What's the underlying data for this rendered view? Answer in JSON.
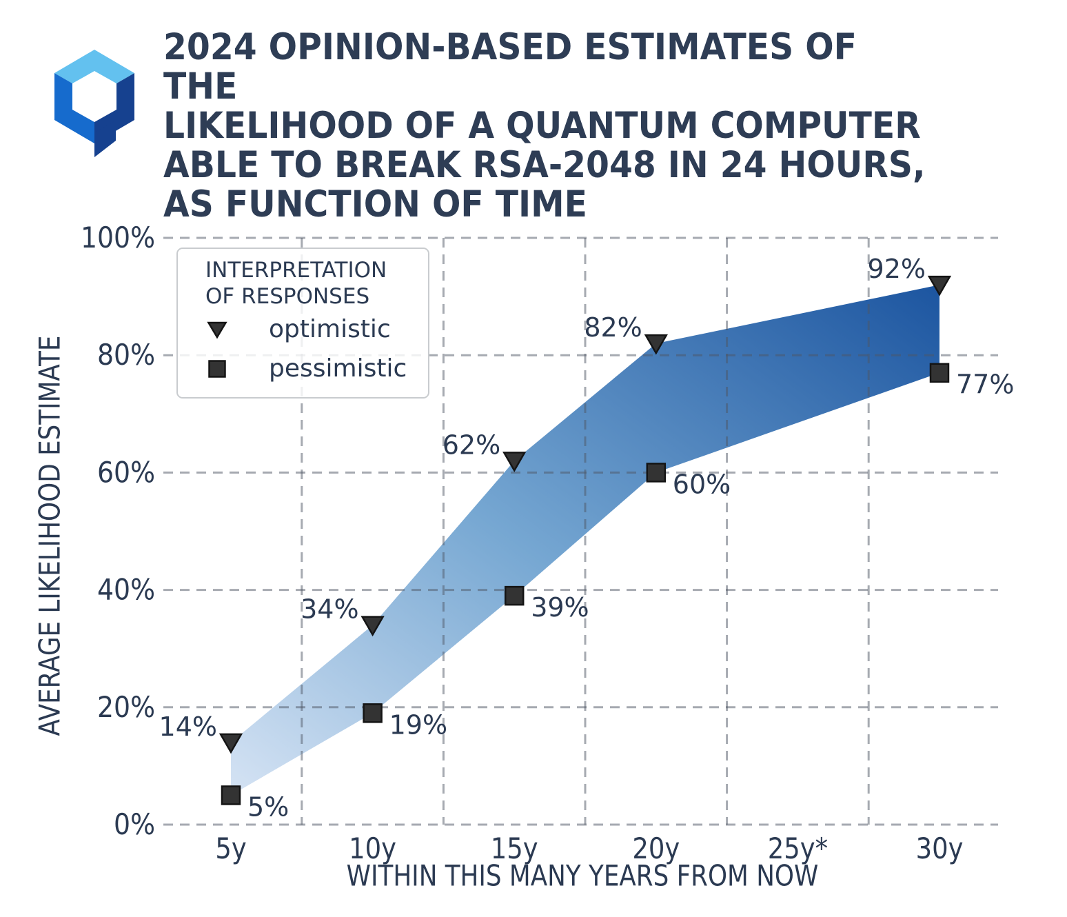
{
  "page": {
    "background": "#ffffff",
    "text_color": "#2B3A52"
  },
  "header": {
    "title": "2024 OPINION-BASED ESTIMATES OF THE\nLIKELIHOOD OF A QUANTUM COMPUTER\nABLE TO BREAK RSA-2048 IN 24 HOURS,\nAS FUNCTION OF TIME",
    "logo_colors": {
      "top": "#63C1EF",
      "left": "#166BCD",
      "right": "#16418F"
    }
  },
  "chart_data": {
    "type": "area",
    "title": "2024 opinion-based estimates of the likelihood of a quantum computer able to break RSA-2048 in 24 hours, as function of time",
    "xlabel": "WITHIN THIS MANY YEARS FROM NOW",
    "ylabel": "AVERAGE LIKELIHOOD ESTIMATE",
    "x": [
      5,
      10,
      15,
      20,
      30
    ],
    "series": [
      {
        "name": "optimistic",
        "marker": "triangle-down",
        "values": [
          14,
          34,
          62,
          82,
          92
        ],
        "point_labels": [
          "14%",
          "34%",
          "62%",
          "82%",
          "92%"
        ]
      },
      {
        "name": "pessimistic",
        "marker": "square",
        "values": [
          5,
          19,
          39,
          60,
          77
        ],
        "point_labels": [
          "5%",
          "19%",
          "39%",
          "60%",
          "77%"
        ]
      }
    ],
    "x_tick_years": [
      5,
      10,
      15,
      20,
      25,
      30
    ],
    "x_tick_labels": [
      "5y",
      "10y",
      "15y",
      "20y",
      "25y*",
      "30y"
    ],
    "y_ticks": [
      0,
      20,
      40,
      60,
      80,
      100
    ],
    "y_tick_labels": [
      "0%",
      "20%",
      "40%",
      "60%",
      "80%",
      "100%"
    ],
    "ylim": [
      0,
      100
    ],
    "grid": "dashed",
    "legend": {
      "title": "INTERPRETATION\nOF RESPONSES",
      "position": "upper left",
      "entries": [
        {
          "marker": "triangle-down",
          "label": "optimistic"
        },
        {
          "marker": "square",
          "label": "pessimistic"
        }
      ]
    },
    "band_fill": {
      "from": "#D5E3F4",
      "mid": "#76A7D2",
      "to": "#1C55A0"
    },
    "marker_fill": "#333333",
    "marker_edge": "#141414",
    "axis_text_color": "#2B3A52",
    "gridline_color": "rgba(78,86,100,0.5)"
  }
}
